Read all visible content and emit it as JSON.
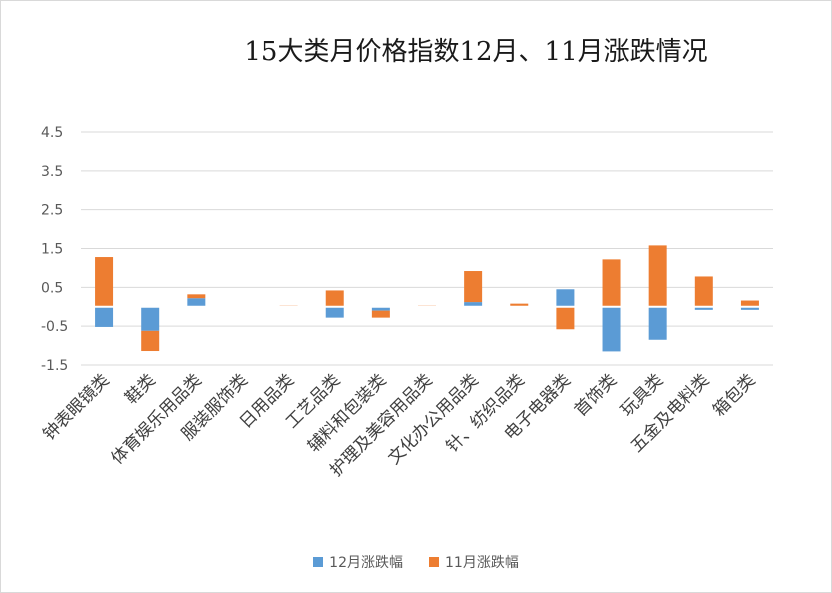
{
  "chart_data": {
    "type": "bar",
    "stacked": true,
    "title": "15大类月价格指数12月、11月涨跌情况",
    "categories": [
      "钟表眼镜类",
      "鞋类",
      "体育娱乐用品类",
      "服装服饰类",
      "日用品类",
      "工艺品类",
      "辅料和包装类",
      "护理及美容用品类",
      "文化办公用品类",
      "针、纺织品类",
      "电子电器类",
      "首饰类",
      "玩具类",
      "五金及电料类",
      "箱包类"
    ],
    "series": [
      {
        "name": "12月涨跌幅",
        "color": "#5b9bd5",
        "values": [
          -0.52,
          -0.62,
          0.22,
          0.0,
          0.0,
          -0.28,
          -0.1,
          0.0,
          0.12,
          0.0,
          0.45,
          -1.15,
          -0.85,
          -0.08,
          -0.08
        ]
      },
      {
        "name": "11月涨跌幅",
        "color": "#ed7d31",
        "values": [
          1.28,
          -0.52,
          0.1,
          0.0,
          0.03,
          0.42,
          -0.18,
          0.03,
          0.8,
          0.08,
          -0.58,
          1.22,
          1.58,
          0.78,
          0.16
        ]
      }
    ],
    "yticks": [
      "4.5",
      "3.5",
      "2.5",
      "1.5",
      "0.5",
      "-0.5",
      "-1.5"
    ],
    "ylim": [
      -1.5,
      4.5
    ],
    "grid": true,
    "legend_position": "bottom"
  }
}
